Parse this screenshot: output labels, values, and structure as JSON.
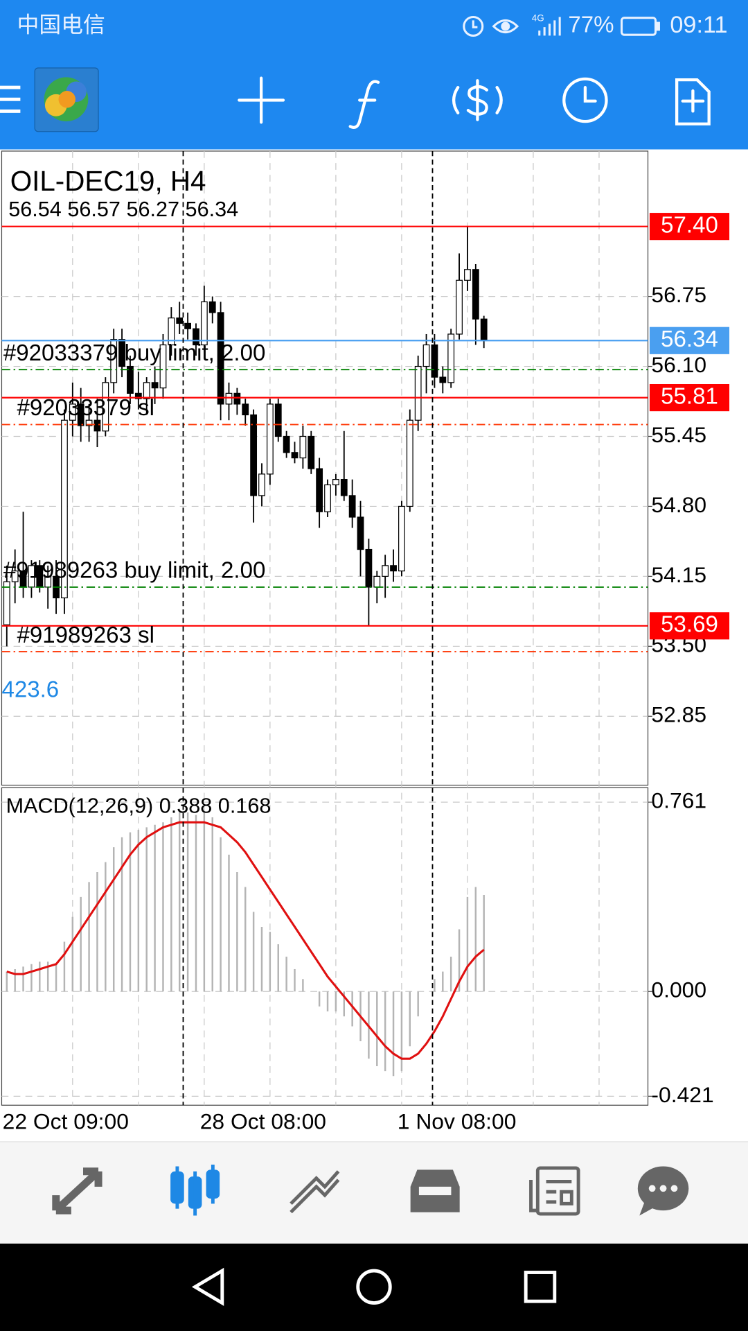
{
  "status_bar": {
    "carrier": "中国电信",
    "network": "4G",
    "battery": "77%",
    "time": "09:11"
  },
  "chart_data": [
    {
      "type": "candlestick",
      "title": "OIL-DEC19, H4",
      "subtitle": "56.54 56.57 56.27 56.34",
      "categories": [
        "22 Oct 09:00",
        null,
        null,
        null,
        null,
        null,
        null,
        null,
        null,
        null,
        null,
        null,
        null,
        null,
        null,
        null,
        null,
        null,
        null,
        null,
        null,
        null,
        null,
        null,
        "28 Oct 08:00",
        null,
        null,
        null,
        null,
        null,
        null,
        null,
        null,
        null,
        null,
        null,
        null,
        null,
        null,
        null,
        null,
        null,
        null,
        null,
        null,
        null,
        null,
        null,
        "1 Nov 08:00",
        null,
        null,
        null,
        null,
        null,
        null,
        null,
        null,
        null,
        null
      ],
      "open": [
        53.7,
        54.1,
        54.2,
        54.05,
        54.25,
        54.05,
        54.15,
        53.95,
        55.6,
        55.75,
        55.55,
        55.6,
        55.5,
        55.95,
        56.35,
        56.1,
        55.85,
        55.8,
        55.95,
        55.9,
        56.3,
        56.55,
        56.5,
        56.45,
        56.3,
        56.7,
        56.6,
        55.75,
        55.85,
        55.75,
        55.65,
        54.9,
        55.1,
        55.75,
        55.45,
        55.3,
        55.25,
        55.45,
        55.15,
        54.75,
        55.0,
        55.05,
        54.9,
        54.7,
        54.4,
        54.05,
        54.15,
        54.25,
        54.2,
        54.8,
        55.6,
        56.1,
        56.3,
        56.0,
        55.95,
        56.4,
        56.9,
        57.0,
        56.54
      ],
      "high": [
        54.25,
        54.4,
        54.75,
        54.3,
        54.3,
        54.25,
        54.3,
        55.7,
        55.95,
        55.9,
        55.75,
        55.8,
        56.0,
        56.45,
        56.45,
        56.2,
        56.05,
        56.0,
        56.1,
        56.4,
        56.65,
        56.7,
        56.6,
        56.5,
        56.85,
        56.75,
        56.7,
        55.95,
        55.9,
        55.8,
        55.7,
        55.2,
        55.8,
        55.8,
        55.5,
        55.4,
        55.55,
        55.5,
        55.25,
        55.05,
        55.1,
        55.5,
        55.05,
        54.85,
        54.5,
        54.2,
        54.35,
        54.4,
        54.85,
        55.7,
        56.2,
        56.4,
        56.4,
        56.1,
        56.45,
        57.15,
        57.4,
        57.05,
        56.57
      ],
      "low": [
        53.5,
        53.9,
        53.95,
        53.95,
        54.0,
        53.85,
        53.8,
        53.8,
        55.45,
        55.4,
        55.4,
        55.35,
        55.45,
        55.85,
        56.0,
        55.75,
        55.7,
        55.65,
        55.75,
        55.8,
        56.2,
        56.4,
        56.35,
        56.2,
        56.25,
        56.5,
        55.6,
        55.6,
        55.65,
        55.55,
        54.65,
        54.8,
        55.0,
        55.4,
        55.25,
        55.2,
        55.15,
        55.1,
        54.6,
        54.7,
        54.9,
        54.85,
        54.6,
        54.15,
        53.69,
        53.9,
        53.95,
        54.1,
        54.15,
        54.75,
        55.5,
        55.85,
        55.9,
        55.85,
        55.9,
        56.35,
        56.8,
        56.3,
        56.27
      ],
      "close": [
        54.1,
        54.2,
        54.05,
        54.25,
        54.05,
        54.15,
        53.95,
        55.6,
        55.75,
        55.55,
        55.6,
        55.5,
        55.95,
        56.35,
        56.1,
        55.85,
        55.8,
        55.95,
        55.9,
        56.3,
        56.55,
        56.5,
        56.45,
        56.3,
        56.7,
        56.6,
        55.75,
        55.85,
        55.75,
        55.65,
        54.9,
        55.1,
        55.75,
        55.45,
        55.3,
        55.25,
        55.45,
        55.15,
        54.75,
        55.0,
        55.05,
        54.9,
        54.7,
        54.4,
        54.05,
        54.15,
        54.25,
        54.2,
        54.8,
        55.6,
        56.1,
        56.3,
        56.0,
        55.95,
        56.4,
        56.9,
        57.0,
        56.54,
        56.34
      ],
      "up_color": "#ffffff",
      "down_color": "#000000",
      "ylim": [
        52.21,
        58.1
      ],
      "yticks": [
        {
          "value": 56.75,
          "label": "56.75"
        },
        {
          "value": 56.1,
          "label": "56.10"
        },
        {
          "value": 55.45,
          "label": "55.45"
        },
        {
          "value": 54.8,
          "label": "54.80"
        },
        {
          "value": 54.15,
          "label": "54.15"
        },
        {
          "value": 53.5,
          "label": "53.50"
        },
        {
          "value": 52.85,
          "label": "52.85"
        }
      ],
      "grid": true,
      "price_lines": [
        {
          "value": 57.4,
          "label": "57.40",
          "color": "#ff0000"
        },
        {
          "value": 56.34,
          "label": "56.34",
          "color": "#4a9ff0"
        },
        {
          "value": 55.81,
          "label": "55.81",
          "color": "#ff0000"
        },
        {
          "value": 53.69,
          "label": "53.69",
          "color": "#ff0000"
        }
      ],
      "order_lines": [
        {
          "label": "#92033379 buy limit, 2.00",
          "value": 56.07,
          "color": "#008000"
        },
        {
          "label": "#92033379 sl",
          "value": 55.56,
          "color": "#ff3300"
        },
        {
          "label": "#91989263 buy limit, 2.00",
          "value": 54.05,
          "color": "#008000"
        },
        {
          "label": "#91989263 sl",
          "value": 53.45,
          "color": "#ff3300"
        }
      ],
      "annotation": {
        "text": "423.6",
        "color": "#1e88e5"
      }
    },
    {
      "type": "macd",
      "title": "MACD(12,26,9) 0.388 0.168",
      "series": [
        {
          "type": "bar",
          "color": "#b4b4b4",
          "values": [
            0.08,
            0.09,
            0.1,
            0.11,
            0.12,
            0.12,
            0.11,
            0.2,
            0.3,
            0.38,
            0.44,
            0.48,
            0.52,
            0.58,
            0.62,
            0.64,
            0.65,
            0.66,
            0.67,
            0.68,
            0.7,
            0.72,
            0.72,
            0.71,
            0.72,
            0.7,
            0.62,
            0.55,
            0.48,
            0.42,
            0.32,
            0.26,
            0.24,
            0.19,
            0.14,
            0.09,
            0.05,
            0.0,
            -0.06,
            -0.08,
            -0.08,
            -0.1,
            -0.14,
            -0.2,
            -0.27,
            -0.3,
            -0.32,
            -0.34,
            -0.32,
            -0.22,
            -0.1,
            0.0,
            0.05,
            0.08,
            0.14,
            0.25,
            0.38,
            0.42,
            0.388
          ]
        },
        {
          "type": "line",
          "color": "#e01010",
          "values": [
            0.08,
            0.07,
            0.07,
            0.08,
            0.09,
            0.1,
            0.11,
            0.15,
            0.2,
            0.25,
            0.3,
            0.35,
            0.4,
            0.45,
            0.5,
            0.55,
            0.59,
            0.62,
            0.64,
            0.66,
            0.67,
            0.68,
            0.68,
            0.68,
            0.68,
            0.67,
            0.66,
            0.63,
            0.6,
            0.56,
            0.51,
            0.46,
            0.41,
            0.36,
            0.31,
            0.26,
            0.21,
            0.16,
            0.11,
            0.06,
            0.02,
            -0.02,
            -0.06,
            -0.1,
            -0.14,
            -0.18,
            -0.22,
            -0.25,
            -0.27,
            -0.27,
            -0.25,
            -0.21,
            -0.16,
            -0.1,
            -0.03,
            0.04,
            0.1,
            0.14,
            0.168
          ]
        }
      ],
      "ylim": [
        -0.457,
        0.819
      ],
      "yticks": [
        0.761,
        {
          "value": 0,
          "label": "0.000"
        },
        -0.421
      ],
      "grid": true
    }
  ]
}
